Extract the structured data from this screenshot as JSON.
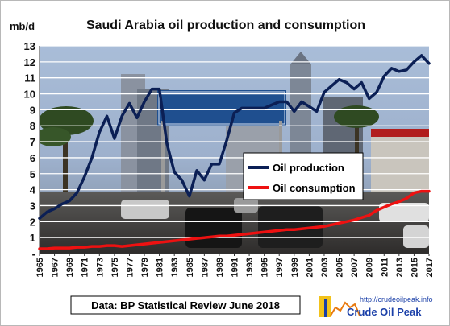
{
  "chart_data": {
    "type": "line",
    "title": "Saudi Arabia oil production and consumption",
    "ylabel": "mb/d",
    "xlabel": "",
    "ylim": [
      0,
      13
    ],
    "xlim": [
      1965,
      2017
    ],
    "yticks": [
      "-",
      "1",
      "2",
      "3",
      "4",
      "5",
      "6",
      "7",
      "8",
      "9",
      "10",
      "11",
      "12",
      "13"
    ],
    "xticks": [
      1965,
      1967,
      1969,
      1971,
      1973,
      1975,
      1977,
      1979,
      1981,
      1983,
      1985,
      1987,
      1989,
      1991,
      1993,
      1995,
      1997,
      1999,
      2001,
      2003,
      2005,
      2007,
      2009,
      2011,
      2013,
      2015,
      2017
    ],
    "grid": true,
    "legend_position": "center-right",
    "series": [
      {
        "name": "Oil production",
        "color": "#0b1f55",
        "x": [
          1965,
          1966,
          1967,
          1968,
          1969,
          1970,
          1971,
          1972,
          1973,
          1974,
          1975,
          1976,
          1977,
          1978,
          1979,
          1980,
          1981,
          1982,
          1983,
          1984,
          1985,
          1986,
          1987,
          1988,
          1989,
          1990,
          1991,
          1992,
          1993,
          1994,
          1995,
          1996,
          1997,
          1998,
          1999,
          2000,
          2001,
          2002,
          2003,
          2004,
          2005,
          2006,
          2007,
          2008,
          2009,
          2010,
          2011,
          2012,
          2013,
          2014,
          2015,
          2016,
          2017
        ],
        "values": [
          2.2,
          2.6,
          2.8,
          3.1,
          3.3,
          3.8,
          4.8,
          6.0,
          7.6,
          8.6,
          7.2,
          8.6,
          9.4,
          8.5,
          9.5,
          10.3,
          10.3,
          6.9,
          5.1,
          4.6,
          3.6,
          5.2,
          4.6,
          5.6,
          5.6,
          7.1,
          8.8,
          9.1,
          9.1,
          9.1,
          9.1,
          9.3,
          9.5,
          9.5,
          8.9,
          9.5,
          9.2,
          8.9,
          10.1,
          10.5,
          10.9,
          10.7,
          10.3,
          10.7,
          9.7,
          10.1,
          11.1,
          11.6,
          11.4,
          11.5,
          12.0,
          12.4,
          11.9
        ]
      },
      {
        "name": "Oil consumption",
        "color": "#ee1111",
        "x": [
          1965,
          1966,
          1967,
          1968,
          1969,
          1970,
          1971,
          1972,
          1973,
          1974,
          1975,
          1976,
          1977,
          1978,
          1979,
          1980,
          1981,
          1982,
          1983,
          1984,
          1985,
          1986,
          1987,
          1988,
          1989,
          1990,
          1991,
          1992,
          1993,
          1994,
          1995,
          1996,
          1997,
          1998,
          1999,
          2000,
          2001,
          2002,
          2003,
          2004,
          2005,
          2006,
          2007,
          2008,
          2009,
          2010,
          2011,
          2012,
          2013,
          2014,
          2015,
          2016,
          2017
        ],
        "values": [
          0.3,
          0.3,
          0.35,
          0.35,
          0.35,
          0.4,
          0.4,
          0.45,
          0.45,
          0.5,
          0.5,
          0.45,
          0.5,
          0.55,
          0.6,
          0.65,
          0.7,
          0.75,
          0.8,
          0.85,
          0.9,
          0.95,
          1.0,
          1.05,
          1.1,
          1.1,
          1.15,
          1.2,
          1.25,
          1.3,
          1.35,
          1.4,
          1.45,
          1.5,
          1.5,
          1.55,
          1.6,
          1.65,
          1.7,
          1.8,
          1.9,
          2.0,
          2.1,
          2.25,
          2.4,
          2.7,
          2.9,
          3.1,
          3.25,
          3.45,
          3.8,
          3.9,
          3.9
        ]
      }
    ]
  },
  "source_label": "Data: BP Statistical Review June 2018",
  "logo": {
    "url": "http://crudeoilpeak.info",
    "name": "Crude Oil Peak"
  },
  "colors": {
    "photo_sky": "#8fa6c4",
    "photo_ground": "#3e3b39",
    "sign_blue": "#1f4f8f",
    "grid": "#ffffff"
  }
}
